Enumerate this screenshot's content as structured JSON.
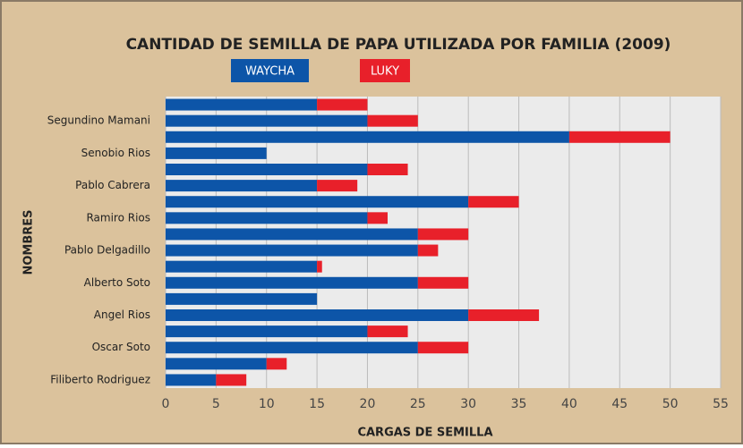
{
  "chart_data": {
    "type": "stacked-barh",
    "title": "CANTIDAD DE SEMILLA DE PAPA UTILIZADA POR FAMILIA (2009)",
    "xlabel": "CARGAS DE SEMILLA",
    "ylabel": "NOMBRES",
    "categories": [
      null,
      "Segundino Mamani",
      null,
      "Senobio Rios",
      null,
      "Pablo Cabrera",
      null,
      "Ramiro Rios",
      null,
      "Pablo Delgadillo",
      null,
      "Alberto Soto",
      null,
      "Angel Rios",
      null,
      "Oscar Soto",
      null,
      "Filiberto Rodriguez"
    ],
    "series": [
      {
        "name": "WAYCHA",
        "color": "#0d55a8",
        "values": [
          15,
          20,
          40,
          10,
          20,
          15,
          30,
          20,
          25,
          25,
          15,
          25,
          15,
          30,
          20,
          25,
          10,
          5
        ]
      },
      {
        "name": "LUKY",
        "color": "#e8202a",
        "values": [
          5,
          5,
          10,
          0,
          4,
          4,
          5,
          2,
          5,
          2,
          0.5,
          5,
          0,
          7,
          4,
          5,
          2,
          3
        ]
      }
    ],
    "xlim": [
      0,
      55
    ],
    "xticks": [
      0,
      5,
      10,
      15,
      20,
      25,
      30,
      35,
      40,
      45,
      50,
      55
    ],
    "grid": true
  }
}
